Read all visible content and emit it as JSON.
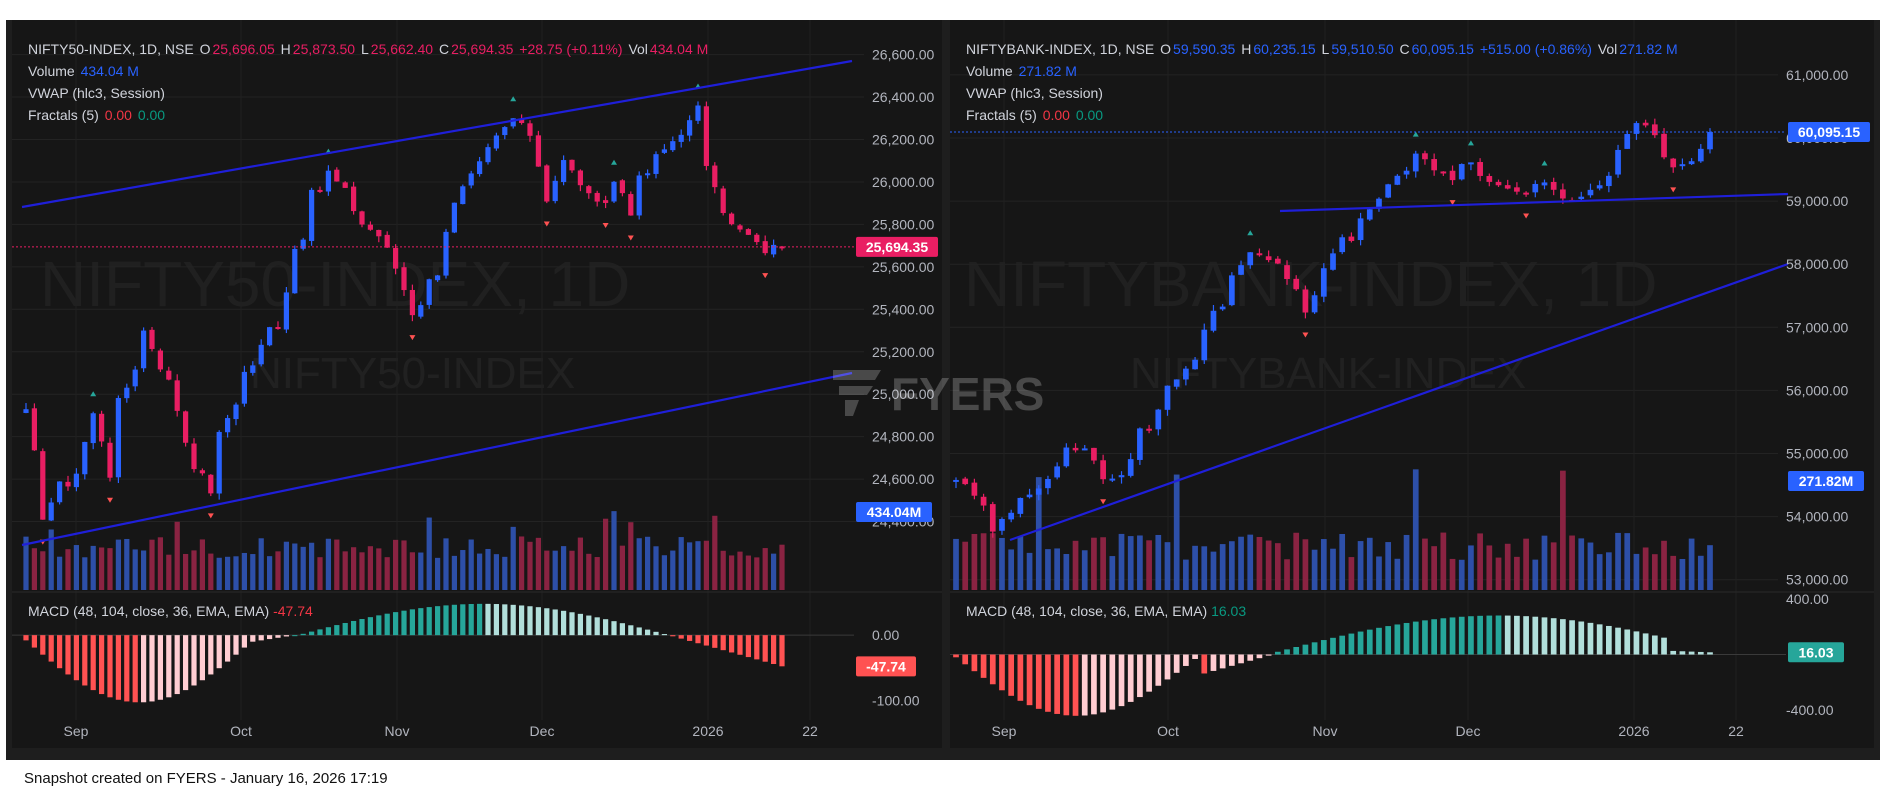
{
  "footer": "Snapshot created on FYERS - January 16, 2026 17:19",
  "brand": "FYERS",
  "colors": {
    "up": "#2962ff",
    "down": "#e91e63",
    "volUp": "#2d4fa8",
    "volDown": "#8a2342",
    "macdPosStrong": "#26a69a",
    "macdPosWeak": "#b2dfdb",
    "macdNegStrong": "#ff5252",
    "macdNegWeak": "#ffcdd2",
    "trendline": "#1f1fd9"
  },
  "left": {
    "legend": {
      "symbol": "NIFTY50-INDEX, 1D, NSE",
      "o_label": "O",
      "o": "25,696.05",
      "h_label": "H",
      "h": "25,873.50",
      "l_label": "L",
      "l": "25,662.40",
      "c_label": "C",
      "c": "25,694.35",
      "chg": "+28.75 (+0.11%)",
      "vol_label": "Vol",
      "vol": "434.04 M",
      "volume_label": "Volume",
      "volume_val": "434.04 M",
      "vwap": "VWAP (hlc3, Session)",
      "fractals": "Fractals (5)",
      "fr1": "0.00",
      "fr2": "0.00"
    },
    "macd_legend": {
      "label": "MACD (48, 104, close, 36, EMA, EMA)",
      "value": "-47.74"
    },
    "watermark": {
      "main": "NIFTY50-INDEX, 1D",
      "sub": "NIFTY50-INDEX"
    },
    "price_badge": "25,694.35",
    "volume_badge": "434.04M",
    "macd_badge": "-47.74"
  },
  "right": {
    "legend": {
      "symbol": "NIFTYBANK-INDEX, 1D, NSE",
      "o_label": "O",
      "o": "59,590.35",
      "h_label": "H",
      "h": "60,235.15",
      "l_label": "L",
      "l": "59,510.50",
      "c_label": "C",
      "c": "60,095.15",
      "chg": "+515.00 (+0.86%)",
      "vol_label": "Vol",
      "vol": "271.82 M",
      "volume_label": "Volume",
      "volume_val": "271.82 M",
      "vwap": "VWAP (hlc3, Session)",
      "fractals": "Fractals (5)",
      "fr1": "0.00",
      "fr2": "0.00"
    },
    "macd_legend": {
      "label": "MACD (48, 104, close, 36, EMA, EMA)",
      "value": "16.03"
    },
    "watermark": {
      "main": "NIFTYBANK-INDEX, 1D",
      "sub": "NIFTYBANK-INDEX"
    },
    "price_badge": "60,095.15",
    "volume_badge": "271.82M",
    "macd_badge": "16.03"
  },
  "chart_data": [
    {
      "type": "candlestick",
      "symbol": "NIFTY50-INDEX",
      "x_ticks": [
        "Sep",
        "Oct",
        "Nov",
        "Dec",
        "2026",
        "22"
      ],
      "y_ticks": [
        "26,600.00",
        "26,400.00",
        "26,200.00",
        "26,000.00",
        "25,800.00",
        "25,600.00",
        "25,400.00",
        "25,200.00",
        "25,000.00",
        "24,800.00",
        "24,600.00",
        "24,400.00"
      ],
      "ylim": [
        24200,
        26650
      ],
      "anchors": [
        24850,
        24450,
        24550,
        24650,
        24900,
        24700,
        25050,
        25300,
        25150,
        24950,
        24650,
        24600,
        24900,
        25100,
        25200,
        25400,
        25700,
        25900,
        26050,
        25950,
        25800,
        25750,
        25600,
        25400,
        25500,
        25800,
        25950,
        26050,
        26200,
        26300,
        26250,
        25950,
        26100,
        26000,
        25850,
        26000,
        25900,
        26050,
        26150,
        26250,
        26300,
        25950,
        25800,
        25750,
        25680,
        25700
      ],
      "close": 25694.35,
      "macd": {
        "ylim": [
          -130,
          60
        ],
        "y_ticks": [
          "0.00",
          "-100.00"
        ],
        "last": -47.74
      }
    },
    {
      "type": "candlestick",
      "symbol": "NIFTYBANK-INDEX",
      "x_ticks": [
        "Sep",
        "Oct",
        "Nov",
        "Dec",
        "2026",
        "22"
      ],
      "y_ticks": [
        "61,000.00",
        "60,000.00",
        "59,000.00",
        "58,000.00",
        "57,000.00",
        "56,000.00",
        "55,000.00",
        "54,000.00",
        "53,000.00"
      ],
      "ylim": [
        52900,
        61300
      ],
      "anchors": [
        54600,
        54300,
        53800,
        54000,
        54400,
        54700,
        55100,
        55000,
        54600,
        54700,
        55300,
        55700,
        56200,
        56500,
        57200,
        57800,
        58200,
        58100,
        57800,
        57400,
        57900,
        58300,
        58700,
        59100,
        59300,
        59800,
        59500,
        59400,
        59700,
        59300,
        59200,
        59100,
        59300,
        59000,
        59100,
        59200,
        59600,
        60300,
        60000,
        59500,
        59600,
        60095
      ],
      "close": 60095.15,
      "macd": {
        "ylim": [
          -470,
          420
        ],
        "y_ticks": [
          "400.00",
          "-400.00"
        ],
        "last": 16.03
      }
    }
  ]
}
